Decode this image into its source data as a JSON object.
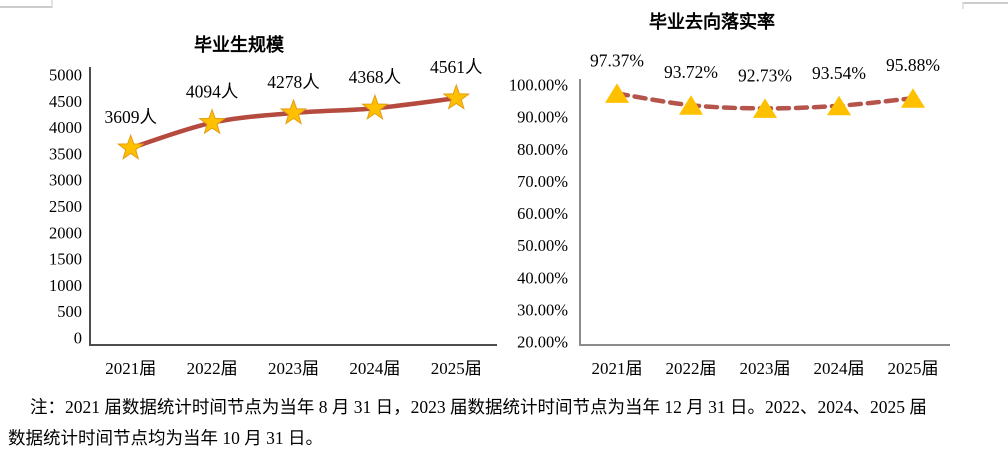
{
  "chart_data": [
    {
      "type": "line",
      "title": "毕业生规模",
      "categories": [
        "2021届",
        "2022届",
        "2023届",
        "2024届",
        "2025届"
      ],
      "values": [
        3609,
        4094,
        4278,
        4368,
        4561
      ],
      "data_labels": [
        "3609人",
        "4094人",
        "4278人",
        "4368人",
        "4561人"
      ],
      "ylim": [
        0,
        5000
      ],
      "ytick_step": 500,
      "ytick_labels_top_to_bottom": [
        "5000",
        "4500",
        "4000",
        "3500",
        "3000",
        "2500",
        "2000",
        "1500",
        "1000",
        "500",
        "0"
      ],
      "line_style": "solid",
      "marker": "star",
      "line_color": "#B54A3F",
      "marker_color": "#FFC000",
      "marker_edge_color": "#E49C15",
      "axis_color": "#4D4D4D",
      "grid": false,
      "legend": "none"
    },
    {
      "type": "line",
      "title": "毕业去向落实率",
      "categories": [
        "2021届",
        "2022届",
        "2023届",
        "2024届",
        "2025届"
      ],
      "values": [
        97.37,
        93.72,
        92.73,
        93.54,
        95.88
      ],
      "data_labels": [
        "97.37%",
        "93.72%",
        "92.73%",
        "93.54%",
        "95.88%"
      ],
      "ylim": [
        20,
        100
      ],
      "ytick_step": 10,
      "ytick_labels_top_to_bottom": [
        "100.00%",
        "90.00%",
        "80.00%",
        "70.00%",
        "60.00%",
        "50.00%",
        "40.00%",
        "30.00%",
        "20.00%"
      ],
      "line_style": "dashed",
      "marker": "triangle",
      "line_color": "#B5544A",
      "marker_color": "#FFC000",
      "marker_edge_color": "#FFC000",
      "axis_color": "#8C8C8C",
      "grid": false,
      "legend": "none"
    }
  ],
  "note": {
    "lines": [
      "注：2021 届数据统计时间节点为当年 8 月 31 日，2023 届数据统计时间节点为当年 12 月 31 日。2022、2024、2025 届",
      "数据统计时间节点均为当年 10 月 31 日。"
    ]
  }
}
